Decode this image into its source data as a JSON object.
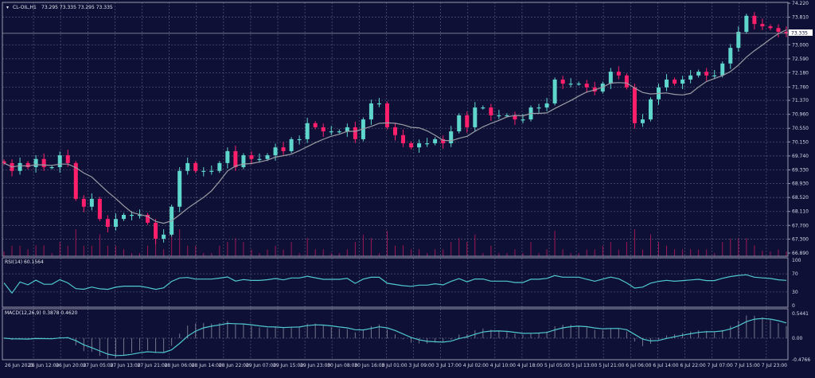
{
  "header": {
    "symbol": "CL-OIL,H1",
    "ohlc": "73.295 73.335 73.295 73.335"
  },
  "rsi_label": "RSI(14) 60.1564",
  "macd_label": "MACD(12,26,9) 0.3878 0.4620",
  "colors": {
    "background": "#0e1036",
    "grid": "#4b4f72",
    "bull": "#5fd6cc",
    "bear": "#ff1f6b",
    "ma": "#9c9ca4",
    "volume": "#c2185b",
    "indicator_line": "#4fc8cf",
    "histogram": "#b8b8c8",
    "axis_text": "#d8d8e8"
  },
  "chart_data": [
    {
      "type": "candlestick",
      "title": "",
      "ylim": [
        66.89,
        74.22
      ],
      "grid": true,
      "last_price": "73.335",
      "y_ticks": [
        "74.220",
        "73.810",
        "73.000",
        "72.590",
        "72.180",
        "71.760",
        "71.370",
        "70.960",
        "70.550",
        "70.150",
        "69.740",
        "69.330",
        "68.930",
        "68.520",
        "68.110",
        "67.700",
        "67.300",
        "66.890"
      ],
      "x_ticks": [
        "26 Jun 2023",
        "26 Jun 12:00",
        "26 Jun 20:00",
        "27 Jun 05:00",
        "27 Jun 13:00",
        "27 Jun 21:00",
        "28 Jun 06:00",
        "28 Jun 14:00",
        "28 Jun 22:00",
        "29 Jun 07:00",
        "29 Jun 15:00",
        "29 Jun 23:00",
        "30 Jun 08:00",
        "30 Jun 16:00",
        "3 Jul 01:00",
        "3 Jul 09:00",
        "3 Jul 17:00",
        "4 Jul 02:00",
        "4 Jul 10:00",
        "4 Jul 18:00",
        "5 Jul 05:00",
        "5 Jul 13:00",
        "5 Jul 21:00",
        "6 Jul 06:00",
        "6 Jul 14:00",
        "6 Jul 22:00",
        "7 Jul 07:00",
        "7 Jul 15:00",
        "7 Jul 23:00"
      ],
      "closes": [
        69.53,
        69.3,
        69.53,
        69.41,
        69.65,
        69.41,
        69.41,
        69.76,
        69.53,
        68.48,
        68.25,
        68.48,
        67.89,
        67.66,
        67.89,
        68.01,
        68.01,
        68.01,
        67.78,
        67.31,
        67.43,
        68.25,
        69.3,
        69.53,
        69.3,
        69.3,
        69.3,
        69.53,
        69.88,
        69.41,
        69.76,
        69.65,
        69.65,
        69.76,
        69.99,
        69.88,
        70.23,
        70.23,
        70.7,
        70.58,
        70.46,
        70.46,
        70.46,
        70.58,
        70.23,
        70.81,
        71.28,
        71.28,
        70.58,
        70.35,
        70.11,
        69.99,
        70.11,
        70.11,
        70.23,
        70.11,
        70.46,
        70.93,
        70.58,
        71.16,
        71.16,
        70.93,
        70.93,
        70.93,
        70.81,
        70.81,
        71.16,
        71.16,
        71.28,
        71.98,
        71.86,
        71.86,
        71.86,
        71.75,
        71.63,
        71.86,
        72.21,
        72.1,
        71.75,
        70.7,
        70.81,
        71.4,
        71.75,
        71.98,
        71.86,
        71.98,
        72.1,
        72.21,
        72.1,
        72.1,
        72.45,
        72.91,
        73.38,
        73.85,
        73.61,
        73.54,
        73.49,
        73.38,
        73.335
      ]
    },
    {
      "type": "line",
      "title": "RSI(14)",
      "ylim": [
        0,
        100
      ],
      "y_ticks": [
        "100",
        "70",
        "30",
        "0"
      ],
      "levels": [
        70,
        30
      ]
    },
    {
      "type": "bar+line",
      "title": "MACD(12,26,9)",
      "ylim": [
        -0.4766,
        0.5441
      ],
      "y_ticks": [
        "0.5441",
        "0.00",
        "-0.4766"
      ]
    }
  ]
}
